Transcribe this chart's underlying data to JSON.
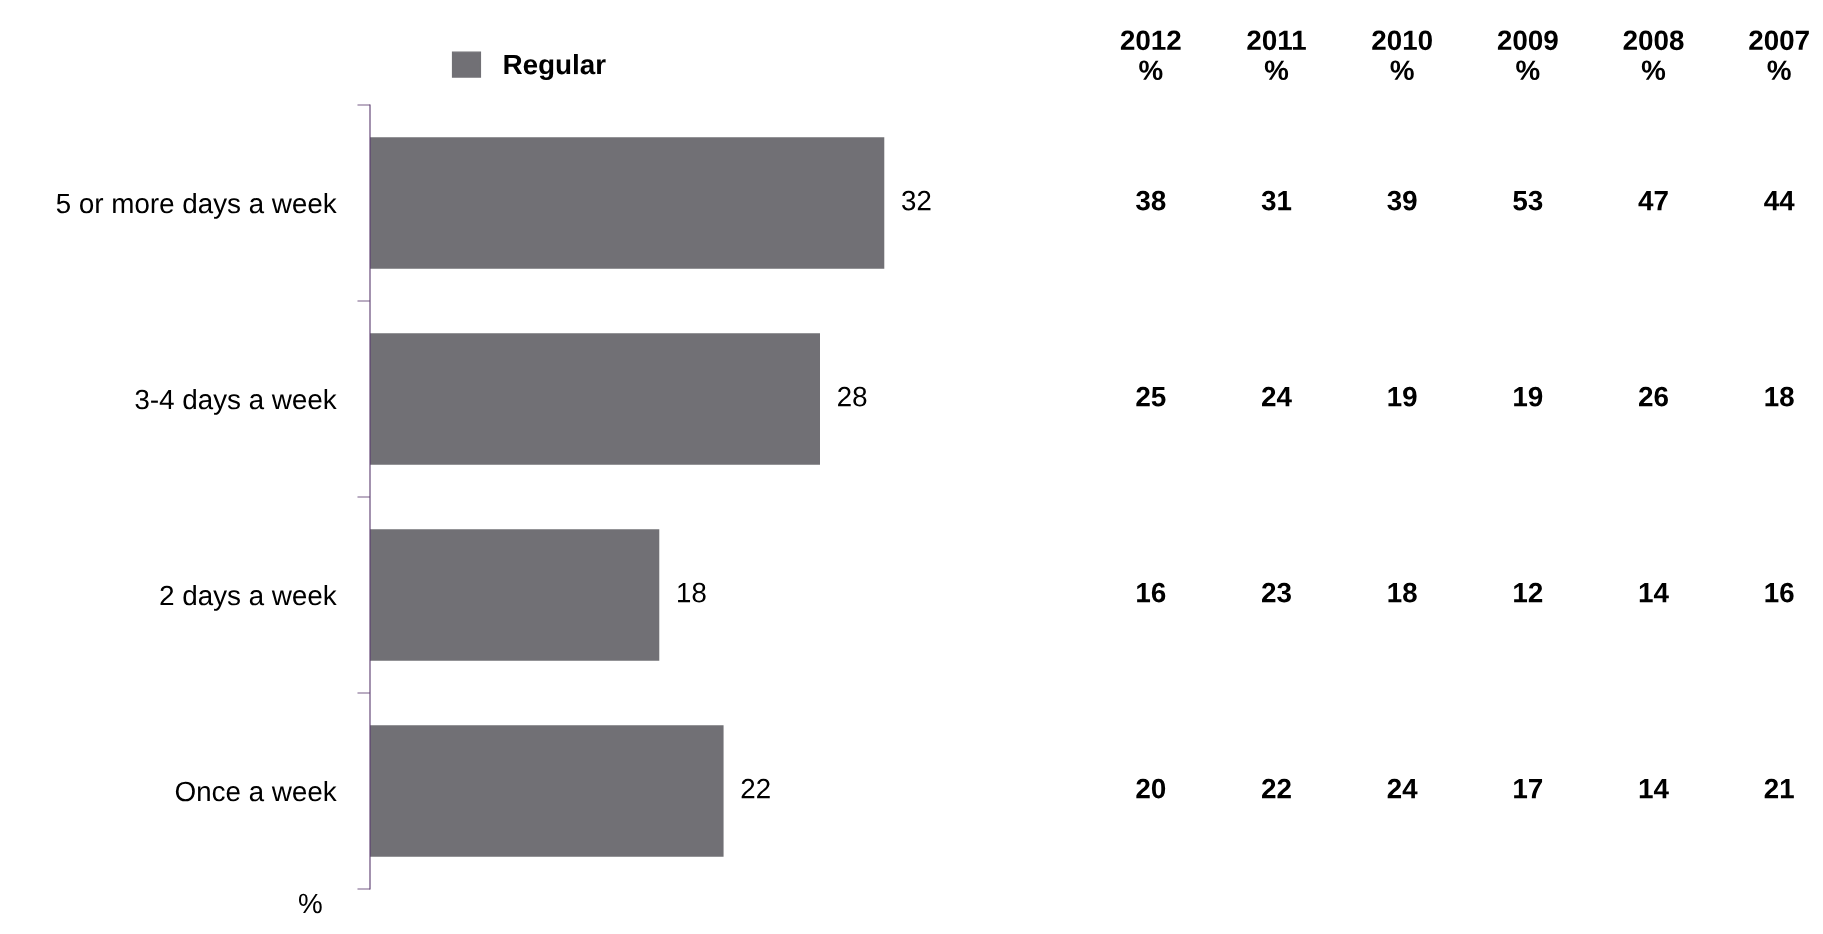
{
  "chart_data": [
    {
      "type": "bar",
      "orientation": "horizontal",
      "categories": [
        "5 or more days a week",
        "3-4 days a week",
        "2 days a week",
        "Once a week"
      ],
      "series": [
        {
          "name": "Regular",
          "color": "#717075",
          "values": [
            32,
            28,
            18,
            22
          ]
        }
      ],
      "data_labels": true,
      "legend": "top",
      "xlabel": "%",
      "tick_labels": "y"
    },
    {
      "type": "heatmap",
      "color": "#ffffff",
      "categories": [
        "2012\n%",
        "2011\n%",
        "2010\n%",
        "2009\n%",
        "2008\n%",
        "2007\n%"
      ],
      "y_categories": [
        null,
        null,
        null,
        null
      ],
      "cells": [
        [
          38,
          31,
          39,
          53,
          47,
          44
        ],
        [
          25,
          24,
          19,
          19,
          26,
          18
        ],
        [
          16,
          23,
          18,
          12,
          14,
          16
        ],
        [
          20,
          22,
          24,
          17,
          14,
          21
        ]
      ],
      "data_labels": true,
      "tick_labels": "x"
    }
  ]
}
